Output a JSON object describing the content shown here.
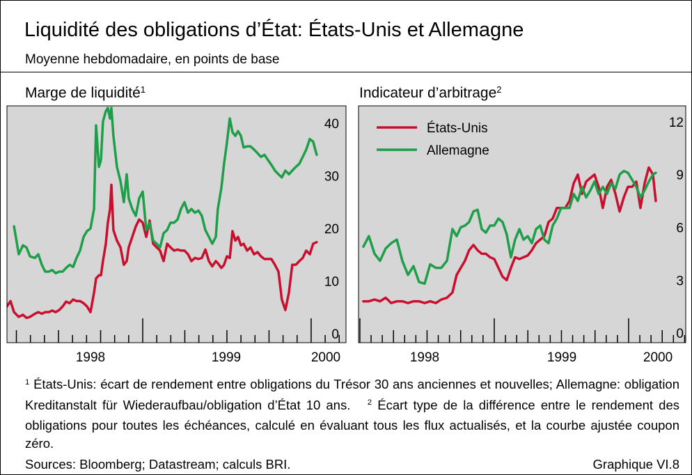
{
  "title": "Liquidité des obligations d’État: États-Unis et Allemagne",
  "subtitle": "Moyenne hebdomadaire, en points de base",
  "chart_data": [
    {
      "type": "line",
      "title": "Marge de liquidité",
      "title_note": "1",
      "xlim": [
        1998.194,
        2000.207
      ],
      "ylim": [
        -1.7,
        43.3
      ],
      "xticks": [
        {
          "value": 1998.69,
          "label": "1998"
        },
        {
          "value": 1999.496,
          "label": "1999"
        },
        {
          "value": 2000.087,
          "label": "2000"
        }
      ],
      "yticks": [
        0,
        10,
        20,
        30,
        40
      ],
      "x": [
        1998.194,
        1998.215,
        1998.236,
        1998.264,
        1998.289,
        1998.31,
        1998.331,
        1998.36,
        1998.38,
        1998.401,
        1998.421,
        1998.442,
        1998.463,
        1998.483,
        1998.504,
        1998.525,
        1998.545,
        1998.566,
        1998.587,
        1998.607,
        1998.628,
        1998.649,
        1998.669,
        1998.69,
        1998.711,
        1998.723,
        1998.74,
        1998.752,
        1998.764,
        1998.781,
        1998.793,
        1998.806,
        1998.814,
        1998.826,
        1998.847,
        1998.868,
        1998.888,
        1998.905,
        1998.917,
        1998.938,
        1998.959,
        1998.979,
        1999.0,
        1999.021,
        1999.041,
        1999.062,
        1999.083,
        1999.103,
        1999.124,
        1999.145,
        1999.165,
        1999.186,
        1999.207,
        1999.227,
        1999.248,
        1999.269,
        1999.289,
        1999.31,
        1999.331,
        1999.351,
        1999.372,
        1999.393,
        1999.413,
        1999.434,
        1999.446,
        1999.467,
        1999.483,
        1999.5,
        1999.517,
        1999.533,
        1999.55,
        1999.566,
        1999.583,
        1999.599,
        1999.62,
        1999.64,
        1999.661,
        1999.682,
        1999.702,
        1999.723,
        1999.744,
        1999.764,
        1999.785,
        1999.806,
        1999.826,
        1999.847,
        1999.868,
        1999.888,
        1999.909,
        1999.93,
        1999.95,
        1999.971,
        1999.992,
        2000.012,
        2000.033
      ],
      "series": [
        {
          "name": "États-Unis",
          "color": "#c8102e",
          "values": [
            5.2,
            6.2,
            4.1,
            3.2,
            3.6,
            3.0,
            3.2,
            3.8,
            4.1,
            3.8,
            4.1,
            4.1,
            4.4,
            4.1,
            4.5,
            5.2,
            6.1,
            5.8,
            6.5,
            6.2,
            6.2,
            5.8,
            5.2,
            4.1,
            7.8,
            10.5,
            11.1,
            11.1,
            13.8,
            17.1,
            21.1,
            23.7,
            28.3,
            19.7,
            17.7,
            16.4,
            13.1,
            13.8,
            16.4,
            18.4,
            20.4,
            21.7,
            21.1,
            18.4,
            21.5,
            17.1,
            16.4,
            15.8,
            13.8,
            17.1,
            16.4,
            15.8,
            16.0,
            15.8,
            15.8,
            15.1,
            13.8,
            14.4,
            14.2,
            14.4,
            16.0,
            13.8,
            12.8,
            13.8,
            13.4,
            12.5,
            13.1,
            14.7,
            14.4,
            19.5,
            17.7,
            18.4,
            16.8,
            17.1,
            15.8,
            16.4,
            15.1,
            15.5,
            14.7,
            14.2,
            14.2,
            14.2,
            13.1,
            11.8,
            6.5,
            4.5,
            7.8,
            13.1,
            13.1,
            13.8,
            14.4,
            15.8,
            15.1,
            17.1,
            17.4
          ]
        },
        {
          "name": "Allemagne",
          "color": "#1e9e48",
          "values": [
            null,
            null,
            20.4,
            15.1,
            16.8,
            16.4,
            14.7,
            14.4,
            15.1,
            13.1,
            11.8,
            11.8,
            12.1,
            11.5,
            11.8,
            11.8,
            12.5,
            13.1,
            12.7,
            14.4,
            15.8,
            18.4,
            19.5,
            20.0,
            23.7,
            39.6,
            31.7,
            33.0,
            40.3,
            42.3,
            42.9,
            40.9,
            42.9,
            37.6,
            31.7,
            29.0,
            25.0,
            30.3,
            25.7,
            23.7,
            22.4,
            25.7,
            27.0,
            19.7,
            21.1,
            17.7,
            17.1,
            16.4,
            19.1,
            19.7,
            21.1,
            21.1,
            21.7,
            23.7,
            25.0,
            23.0,
            23.7,
            23.0,
            23.4,
            22.4,
            19.7,
            18.4,
            17.1,
            18.4,
            23.7,
            27.7,
            32.3,
            36.3,
            40.9,
            38.3,
            37.6,
            38.5,
            37.6,
            35.4,
            35.6,
            35.6,
            35.0,
            34.3,
            33.6,
            34.0,
            33.0,
            32.1,
            31.0,
            30.3,
            29.7,
            31.0,
            30.3,
            31.0,
            31.7,
            32.3,
            33.6,
            35.0,
            37.0,
            36.5,
            34.0
          ]
        }
      ]
    },
    {
      "type": "line",
      "title": "Indicateur d’arbitrage",
      "title_note": "2",
      "legend": "upper left",
      "xlim": [
        1997.99,
        2000.425
      ],
      "ylim": [
        -0.55,
        12.9
      ],
      "xticks": [
        {
          "value": 1998.482,
          "label": "1998"
        },
        {
          "value": 1999.503,
          "label": "1999"
        },
        {
          "value": 2000.218,
          "label": "2000"
        }
      ],
      "yticks": [
        0,
        3,
        6,
        9,
        12
      ],
      "x": [
        1998.026,
        1998.067,
        1998.109,
        1998.15,
        1998.192,
        1998.233,
        1998.275,
        1998.316,
        1998.358,
        1998.399,
        1998.44,
        1998.482,
        1998.523,
        1998.565,
        1998.606,
        1998.648,
        1998.689,
        1998.72,
        1998.751,
        1998.782,
        1998.813,
        1998.845,
        1998.876,
        1998.907,
        1998.938,
        1998.969,
        1999.0,
        1999.031,
        1999.062,
        1999.093,
        1999.124,
        1999.155,
        1999.187,
        1999.218,
        1999.249,
        1999.28,
        1999.311,
        1999.342,
        1999.373,
        1999.404,
        1999.435,
        1999.466,
        1999.497,
        1999.528,
        1999.56,
        1999.591,
        1999.622,
        1999.653,
        1999.684,
        1999.715,
        1999.746,
        1999.777,
        1999.808,
        1999.839,
        1999.87,
        1999.902,
        1999.933,
        1999.964,
        1999.995,
        2000.026,
        2000.057,
        2000.088,
        2000.119,
        2000.15,
        2000.181,
        2000.202
      ],
      "series": [
        {
          "name": "États-Unis",
          "color": "#c8102e",
          "values": [
            1.8,
            1.8,
            1.9,
            1.8,
            2.0,
            1.7,
            1.8,
            1.8,
            1.7,
            1.8,
            1.8,
            1.7,
            1.8,
            1.7,
            1.9,
            2.0,
            2.3,
            3.3,
            3.7,
            4.1,
            4.7,
            5.0,
            4.7,
            4.5,
            4.5,
            4.3,
            4.2,
            3.7,
            3.2,
            3.0,
            3.7,
            4.3,
            4.2,
            4.3,
            4.4,
            4.7,
            5.1,
            5.3,
            5.5,
            6.3,
            6.5,
            7.1,
            7.1,
            7.1,
            7.5,
            8.5,
            9.0,
            7.9,
            8.6,
            8.8,
            9.0,
            8.3,
            7.1,
            8.3,
            8.7,
            7.9,
            6.9,
            7.7,
            8.3,
            8.3,
            8.6,
            7.1,
            8.5,
            9.4,
            9.0,
            7.5
          ]
        },
        {
          "name": "Allemagne",
          "color": "#1e9e48",
          "values": [
            4.9,
            5.5,
            4.5,
            4.1,
            4.8,
            5.1,
            5.3,
            4.1,
            3.3,
            3.8,
            2.9,
            2.8,
            3.9,
            3.7,
            3.7,
            4.1,
            5.9,
            5.5,
            6.0,
            6.1,
            6.3,
            6.9,
            7.0,
            5.9,
            5.7,
            6.1,
            6.1,
            6.5,
            6.3,
            5.6,
            4.3,
            5.3,
            5.9,
            5.3,
            5.5,
            5.1,
            5.9,
            6.1,
            5.3,
            5.1,
            6.1,
            6.5,
            7.1,
            7.1,
            7.1,
            7.9,
            7.5,
            8.3,
            7.7,
            8.1,
            8.6,
            7.9,
            8.3,
            7.9,
            8.5,
            8.2,
            9.0,
            9.2,
            9.1,
            8.7,
            8.3,
            7.7,
            8.1,
            8.6,
            9.0,
            9.1
          ]
        }
      ]
    }
  ],
  "footnotes": [
    {
      "marker": "1",
      "text": "États-Unis: écart de rendement entre obligations du Trésor 30 ans anciennes et nouvelles; Allemagne: obligation Kreditanstalt für Wiederaufbau/obligation d’État 10 ans."
    },
    {
      "marker": "2",
      "text": "Écart type de la différence entre le rendement des obligations pour toutes les échéances, calculé en évaluant tous les flux actualisés, et la courbe ajustée coupon zéro."
    }
  ],
  "sources": "Sources: Bloomberg; Datastream; calculs BRI.",
  "figure_label": "Graphique VI.8"
}
